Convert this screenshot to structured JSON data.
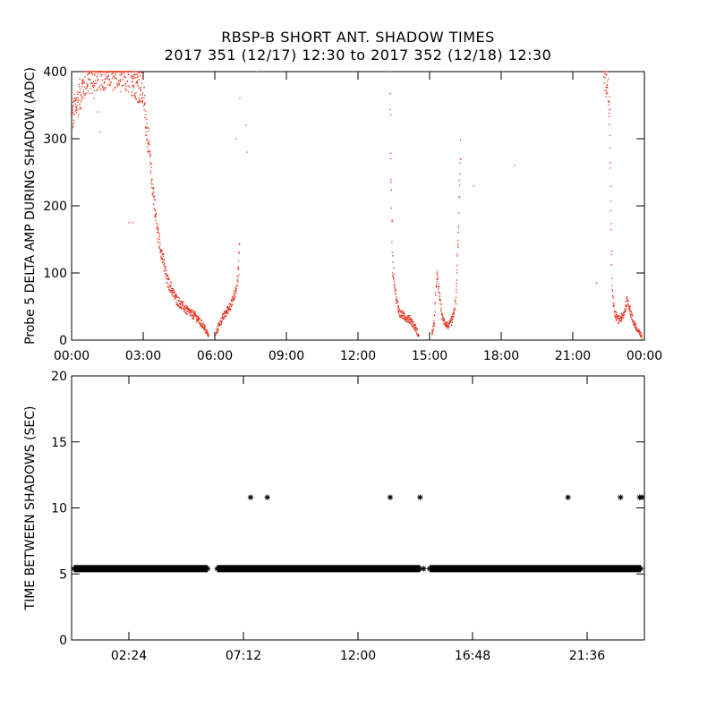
{
  "figure": {
    "title_line1": "RBSP-B SHORT ANT. SHADOW TIMES",
    "title_line2": "2017 351 (12/17) 12:30 to 2017 352 (12/18) 12:30"
  },
  "chart_data": [
    {
      "type": "scatter",
      "title": "",
      "xlabel": "",
      "ylabel": "Probe 5 DELTA AMP DURING SHADOW (ADC)",
      "xlim": [
        0,
        24
      ],
      "ylim": [
        0,
        400
      ],
      "x_ticks": [
        "00:00",
        "03:00",
        "06:00",
        "09:00",
        "12:00",
        "15:00",
        "18:00",
        "21:00",
        "00:00"
      ],
      "y_ticks": [
        "0",
        "100",
        "200",
        "300",
        "400"
      ],
      "grid": false,
      "point_color": "#e8321e",
      "x_unit": "hours",
      "segments": [
        {
          "x": [
            0.0,
            0.6,
            1.2,
            1.9,
            2.6,
            3.0,
            3.3,
            3.6,
            4.0,
            4.4,
            4.8,
            5.2,
            5.55,
            5.75
          ],
          "y": [
            330,
            390,
            400,
            400,
            390,
            370,
            260,
            160,
            90,
            60,
            45,
            35,
            20,
            5
          ]
        },
        {
          "x": [
            6.05,
            6.2,
            6.45,
            6.7,
            6.9,
            7.0,
            7.05
          ],
          "y": [
            10,
            25,
            40,
            55,
            75,
            110,
            160
          ]
        },
        {
          "x": [
            13.35,
            13.38,
            13.45,
            13.6,
            13.75,
            13.95,
            14.2,
            14.45,
            14.55
          ],
          "y": [
            390,
            250,
            110,
            60,
            40,
            35,
            30,
            15,
            5
          ]
        },
        {
          "x": [
            15.1,
            15.2,
            15.25,
            15.3,
            15.4,
            15.55,
            15.8,
            16.0,
            16.1,
            16.2,
            16.3
          ],
          "y": [
            10,
            25,
            60,
            100,
            70,
            30,
            20,
            35,
            60,
            150,
            300
          ]
        },
        {
          "x": [
            22.3,
            22.45,
            22.55,
            22.6,
            22.65,
            22.75,
            22.9,
            23.1,
            23.3,
            23.5,
            23.7,
            23.9
          ],
          "y": [
            400,
            380,
            330,
            180,
            80,
            40,
            30,
            35,
            60,
            30,
            15,
            5
          ]
        }
      ],
      "scattered_points": {
        "x": [
          0.95,
          1.2,
          1.1,
          1.7,
          2.4,
          2.55,
          6.9,
          7.05,
          7.3,
          7.35,
          7.75,
          16.85,
          18.55,
          22.0
        ],
        "y": [
          360,
          310,
          340,
          390,
          175,
          175,
          300,
          360,
          320,
          280,
          400,
          230,
          260,
          85
        ]
      }
    },
    {
      "type": "scatter",
      "title": "",
      "xlabel": "",
      "ylabel": "TIME BETWEEN SHADOWS (SEC)",
      "xlim": [
        0,
        24
      ],
      "ylim": [
        0,
        20
      ],
      "x_ticks": [
        "02:24",
        "07:12",
        "12:00",
        "16:48",
        "21:36"
      ],
      "x_tick_values": [
        2.4,
        7.2,
        12.0,
        16.8,
        21.6
      ],
      "y_ticks": [
        "0",
        "5",
        "10",
        "15",
        "20"
      ],
      "grid": false,
      "marker": "asterisk",
      "baseline": {
        "y": 5.4,
        "ranges": [
          [
            0.1,
            5.7
          ],
          [
            6.1,
            14.6
          ],
          [
            15.0,
            23.85
          ]
        ]
      },
      "gap_markers": {
        "x": [
          14.75
        ],
        "y": [
          5.4
        ]
      },
      "double_points": {
        "x": [
          7.5,
          8.2,
          13.35,
          14.6,
          20.8,
          23.0,
          23.8,
          23.9
        ],
        "y": [
          10.8,
          10.8,
          10.8,
          10.8,
          10.8,
          10.8,
          10.8,
          10.8
        ]
      }
    }
  ]
}
